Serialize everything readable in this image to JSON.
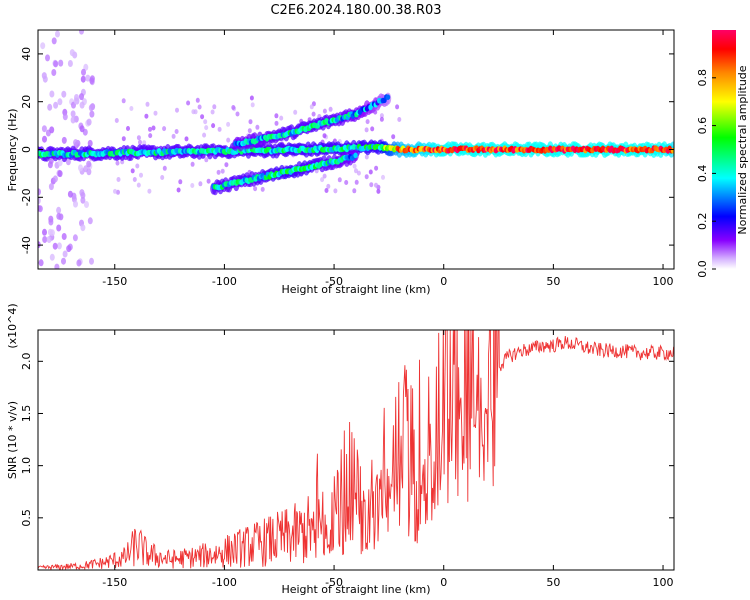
{
  "figure": {
    "title": "C2E6.2024.180.00.38.R03"
  },
  "chart_data": [
    {
      "type": "heatmap",
      "title": "C2E6.2024.180.00.38.R03",
      "xlabel": "Height of straight line (km)",
      "ylabel": "Frequency (Hz)",
      "xlim": [
        -185,
        105
      ],
      "ylim": [
        -50,
        50
      ],
      "xticks": [
        -150,
        -100,
        -50,
        0,
        50,
        100
      ],
      "yticks": [
        -40,
        -20,
        0,
        20,
        40
      ],
      "grid": false,
      "colorbar": {
        "label": "Normalized spectral amplitude",
        "range": [
          0,
          1
        ],
        "ticks": [
          0.0,
          0.2,
          0.4,
          0.6,
          0.8
        ],
        "colors": [
          "#ffffff",
          "#8800ff",
          "#0000ff",
          "#00ffff",
          "#00ff00",
          "#ffff00",
          "#ff8800",
          "#ff0000",
          "#ff0066"
        ]
      },
      "ridges": [
        {
          "note": "main carrier",
          "x": [
            -185,
            -120,
            -60,
            -30,
            -20,
            0,
            50,
            100,
            105
          ],
          "y": [
            -2,
            -1,
            0,
            1,
            0,
            0,
            0,
            0,
            0
          ],
          "amplitude": [
            0.35,
            0.35,
            0.38,
            0.4,
            0.75,
            0.85,
            0.85,
            0.85,
            0.8
          ]
        },
        {
          "note": "upper sideband",
          "x": [
            -95,
            -70,
            -55,
            -40,
            -25
          ],
          "y": [
            2,
            7,
            11,
            15,
            22
          ],
          "amplitude": [
            0.3,
            0.35,
            0.35,
            0.3,
            0.15
          ]
        },
        {
          "note": "lower sideband",
          "x": [
            -105,
            -85,
            -70,
            -55,
            -40
          ],
          "y": [
            -16,
            -12,
            -9,
            -6,
            -3
          ],
          "amplitude": [
            0.35,
            0.35,
            0.4,
            0.35,
            0.3
          ]
        }
      ]
    },
    {
      "type": "line",
      "title": "",
      "xlabel": "Height of straight line (km)",
      "ylabel": "SNR (10 * v/v)",
      "multiplier": "(x10^4)",
      "xlim": [
        -185,
        105
      ],
      "ylim": [
        0,
        23000
      ],
      "xticks": [
        -150,
        -100,
        -50,
        0,
        50,
        100
      ],
      "yticks": [
        5000,
        10000,
        15000,
        20000
      ],
      "ytick_labels": [
        "0.5",
        "1.0",
        "1.5",
        "2.0"
      ],
      "grid": false,
      "series": [
        {
          "color": "#ee3333",
          "x": [
            -185,
            -175,
            -165,
            -155,
            -145,
            -140,
            -135,
            -125,
            -115,
            -105,
            -95,
            -85,
            -75,
            -65,
            -55,
            -45,
            -40,
            -35,
            -30,
            -25,
            -20,
            -15,
            -10,
            -5,
            0,
            5,
            10,
            15,
            20,
            25,
            30,
            35,
            40,
            45,
            50,
            55,
            60,
            65,
            70,
            75,
            80,
            85,
            90,
            95,
            100,
            105
          ],
          "y": [
            200,
            300,
            400,
            700,
            1200,
            2500,
            1500,
            1000,
            1200,
            1500,
            2000,
            2500,
            3000,
            3500,
            4500,
            5000,
            6000,
            8000,
            9000,
            10000,
            11000,
            9000,
            10000,
            12000,
            14000,
            15000,
            16000,
            16500,
            18000,
            19500,
            20500,
            21000,
            21200,
            21500,
            21500,
            21800,
            21600,
            21300,
            21100,
            21000,
            21000,
            20900,
            20800,
            20800,
            20800,
            20800
          ]
        }
      ]
    }
  ]
}
